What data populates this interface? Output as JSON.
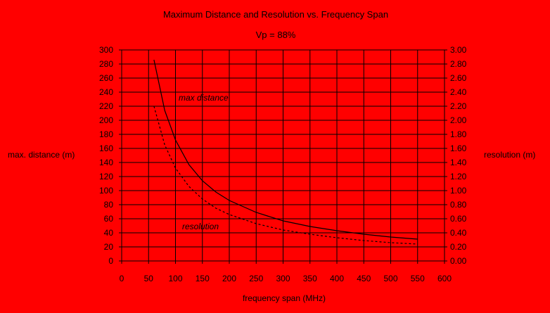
{
  "chart_data": {
    "type": "line",
    "title": "Maximum Distance and Resolution vs. Frequency Span",
    "subtitle": "Vp =  88%",
    "xlabel": "frequency span (MHz)",
    "ylabel_left": "max. distance (m)",
    "ylabel_right": "resolution (m)",
    "xlim": [
      0,
      600
    ],
    "ylim_left": [
      0,
      300
    ],
    "ylim_right": [
      0,
      3.0
    ],
    "x_ticks": [
      "0",
      "50",
      "100",
      "150",
      "200",
      "250",
      "300",
      "350",
      "400",
      "450",
      "500",
      "550",
      "600"
    ],
    "y_left_ticks": [
      "0",
      "20",
      "40",
      "60",
      "80",
      "100",
      "120",
      "140",
      "160",
      "180",
      "200",
      "220",
      "240",
      "260",
      "280",
      "300"
    ],
    "y_right_ticks": [
      "0.00",
      "0.20",
      "0.40",
      "0.60",
      "0.80",
      "1.00",
      "1.20",
      "1.40",
      "1.60",
      "1.80",
      "2.00",
      "2.20",
      "2.40",
      "2.60",
      "2.80",
      "3.00"
    ],
    "grid": true,
    "series": [
      {
        "name": "max distance",
        "axis": "left",
        "style": "solid",
        "x": [
          60,
          80,
          100,
          125,
          150,
          175,
          200,
          250,
          300,
          350,
          400,
          450,
          500,
          550
        ],
        "y": [
          286,
          214,
          172,
          137,
          114,
          98,
          86,
          69,
          57,
          49,
          43,
          38,
          34,
          31
        ]
      },
      {
        "name": "resolution",
        "axis": "right",
        "style": "dashed",
        "x": [
          60,
          80,
          100,
          125,
          150,
          175,
          200,
          250,
          300,
          350,
          400,
          450,
          500,
          550
        ],
        "y": [
          2.2,
          1.65,
          1.32,
          1.06,
          0.88,
          0.75,
          0.66,
          0.53,
          0.44,
          0.38,
          0.33,
          0.29,
          0.26,
          0.24
        ]
      }
    ],
    "colors": {
      "background": "#ff0000",
      "ink": "#000000"
    }
  }
}
